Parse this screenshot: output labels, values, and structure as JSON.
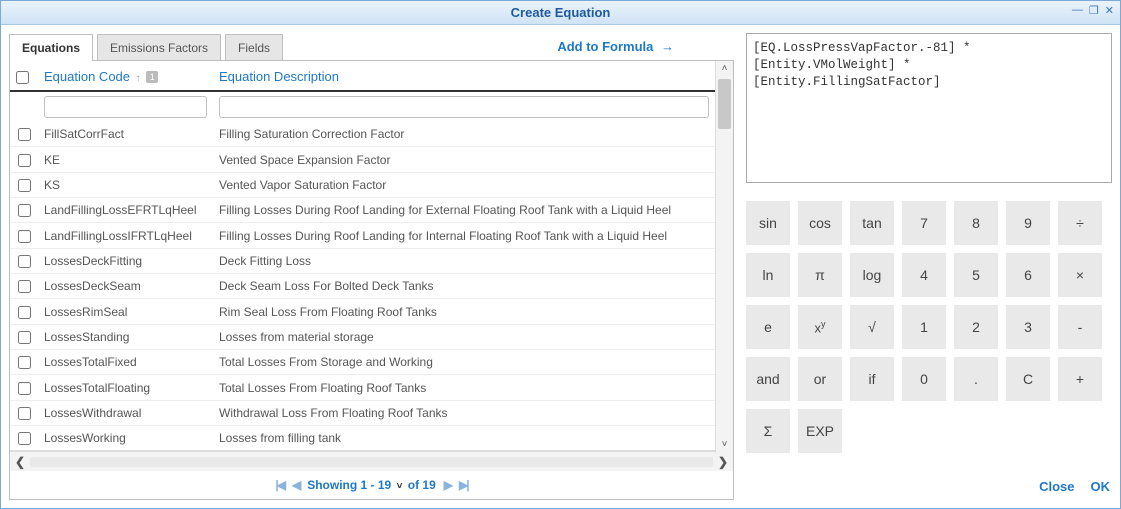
{
  "window": {
    "title": "Create Equation"
  },
  "tabs": {
    "items": [
      {
        "label": "Equations",
        "active": true
      },
      {
        "label": "Emissions Factors",
        "active": false
      },
      {
        "label": "Fields",
        "active": false
      }
    ]
  },
  "add_to_formula_label": "Add to Formula",
  "grid": {
    "col_code": "Equation Code",
    "col_desc": "Equation Description",
    "sort_badge": "1",
    "rows": [
      {
        "code": "FillSatCorrFact",
        "desc": "Filling Saturation Correction Factor"
      },
      {
        "code": "KE",
        "desc": "Vented Space Expansion Factor"
      },
      {
        "code": "KS",
        "desc": "Vented Vapor Saturation Factor"
      },
      {
        "code": "LandFillingLossEFRTLqHeel",
        "desc": "Filling Losses During Roof Landing for External Floating Roof Tank with a Liquid Heel"
      },
      {
        "code": "LandFillingLossIFRTLqHeel",
        "desc": "Filling Losses During Roof Landing for Internal Floating Roof Tank with a Liquid Heel"
      },
      {
        "code": "LossesDeckFitting",
        "desc": "Deck Fitting Loss"
      },
      {
        "code": "LossesDeckSeam",
        "desc": "Deck Seam Loss For Bolted Deck Tanks"
      },
      {
        "code": "LossesRimSeal",
        "desc": "Rim Seal Loss From Floating Roof Tanks"
      },
      {
        "code": "LossesStanding",
        "desc": "Losses from material storage"
      },
      {
        "code": "LossesTotalFixed",
        "desc": "Total Losses From Storage and Working"
      },
      {
        "code": "LossesTotalFloating",
        "desc": "Total Losses From Floating Roof Tanks"
      },
      {
        "code": "LossesWithdrawal",
        "desc": "Withdrawal Loss From Floating Roof Tanks"
      },
      {
        "code": "LossesWorking",
        "desc": "Losses from filling tank"
      }
    ]
  },
  "pager": {
    "prefix": "Showing ",
    "range": "1 - 19",
    "of": " of ",
    "total": "19"
  },
  "formula_text": "[EQ.LossPressVapFactor.-81] *\n[Entity.VMolWeight] *\n[Entity.FillingSatFactor]",
  "calc": {
    "buttons": [
      [
        "sin",
        "cos",
        "tan",
        "7",
        "8",
        "9",
        "÷"
      ],
      [
        "ln",
        "π",
        "log",
        "4",
        "5",
        "6",
        "×"
      ],
      [
        "e",
        "xʸ",
        "√",
        "1",
        "2",
        "3",
        "-"
      ],
      [
        "and",
        "or",
        "if",
        "0",
        ".",
        "C",
        "+"
      ],
      [
        "Σ",
        "EXP",
        "",
        "",
        "",
        "",
        ""
      ]
    ]
  },
  "dialog": {
    "close": "Close",
    "ok": "OK"
  },
  "colors": {
    "accent": "#1e78c8",
    "titlebar_top": "#eaf3fb",
    "titlebar_bottom": "#cfe3f5",
    "border": "#7da9d6",
    "calc_btn_bg": "#e9e9e9",
    "text": "#333333"
  }
}
